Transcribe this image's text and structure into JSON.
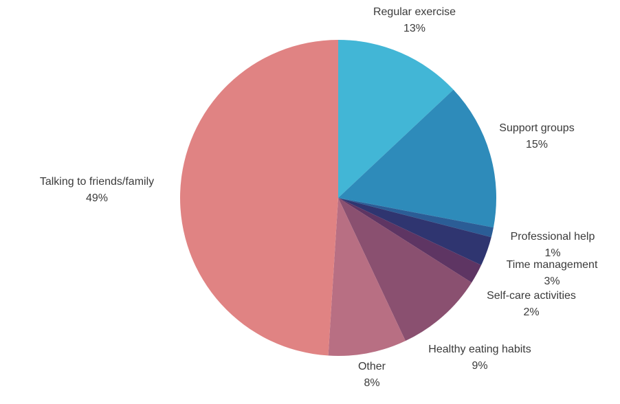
{
  "chart_data": {
    "type": "pie",
    "categories": [
      "Regular exercise",
      "Support groups",
      "Professional help",
      "Time management",
      "Self-care activities",
      "Healthy eating habits",
      "Other",
      "Talking to friends/family"
    ],
    "values": [
      13,
      15,
      1,
      3,
      2,
      9,
      8,
      49
    ],
    "value_labels": [
      "13%",
      "15%",
      "1%",
      "3%",
      "2%",
      "9%",
      "8%",
      "49%"
    ],
    "colors": [
      "#42b6d6",
      "#2e8bba",
      "#2b5d96",
      "#2f3570",
      "#5e3563",
      "#8a5070",
      "#b86f83",
      "#e08383"
    ]
  }
}
